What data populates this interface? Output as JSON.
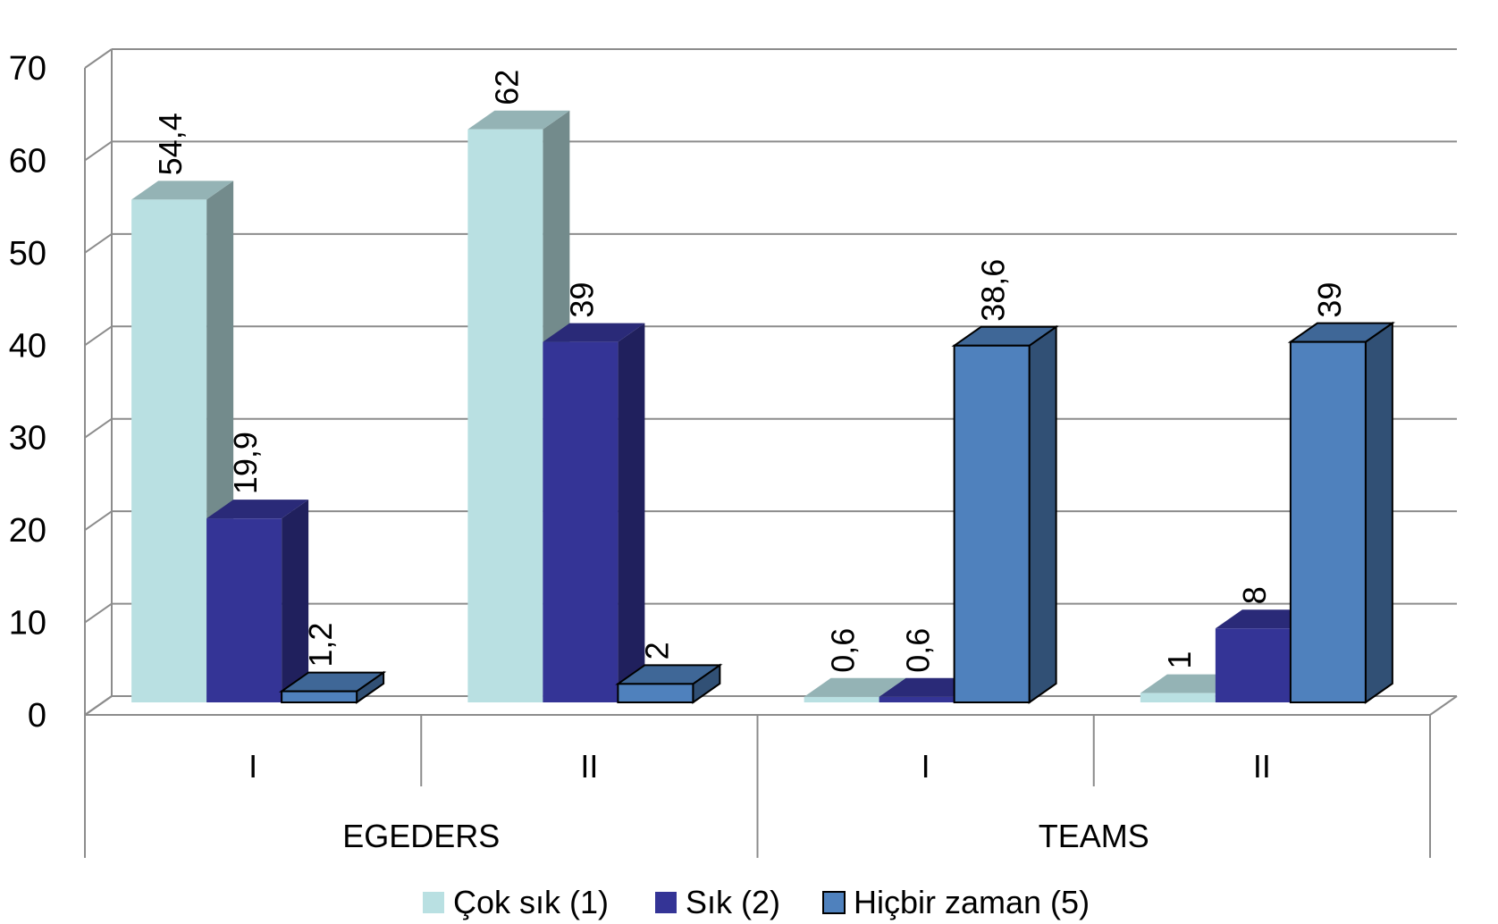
{
  "chart_data": {
    "type": "bar",
    "groups": [
      {
        "label": "EGEDERS",
        "categories": [
          "I",
          "II"
        ]
      },
      {
        "label": "TEAMS",
        "categories": [
          "I",
          "II"
        ]
      }
    ],
    "series": [
      {
        "name": "Çok sık (1)",
        "values": [
          54.4,
          62,
          0.6,
          1
        ],
        "value_labels": [
          "54,4",
          "62",
          "0,6",
          "1"
        ],
        "color": "#b9e0e2"
      },
      {
        "name": "Sık (2)",
        "values": [
          19.9,
          39,
          0.6,
          8
        ],
        "value_labels": [
          "19,9",
          "39",
          "0,6",
          "8"
        ],
        "color": "#343496"
      },
      {
        "name": "Hiçbir zaman (5)",
        "values": [
          1.2,
          2,
          38.6,
          39
        ],
        "value_labels": [
          "1,2",
          "2",
          "38,6",
          "39"
        ],
        "color": "#4f81bd"
      }
    ],
    "ylim": [
      0,
      70
    ],
    "yticks": [
      "0",
      "10",
      "20",
      "30",
      "40",
      "50",
      "60",
      "70"
    ],
    "grid": true,
    "legend_position": "bottom",
    "title": "",
    "xlabel": "",
    "ylabel": ""
  }
}
